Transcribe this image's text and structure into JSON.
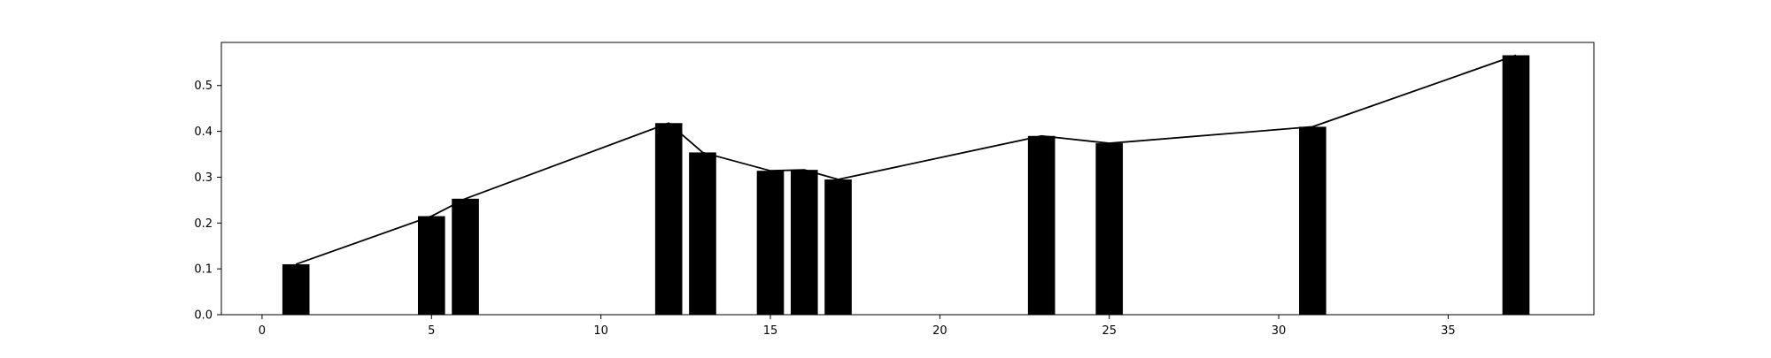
{
  "chart_data": {
    "type": "bar",
    "title": "",
    "xlabel": "",
    "ylabel": "",
    "x": [
      1,
      5,
      6,
      12,
      13,
      15,
      16,
      17,
      23,
      25,
      31,
      37
    ],
    "values": [
      0.11,
      0.215,
      0.253,
      0.418,
      0.354,
      0.314,
      0.316,
      0.295,
      0.39,
      0.374,
      0.41,
      0.566
    ],
    "line_overlay": true,
    "xlim": [
      -1.2,
      39.3
    ],
    "ylim": [
      0,
      0.594
    ],
    "xticks": [
      0,
      5,
      10,
      15,
      20,
      25,
      30,
      35
    ],
    "yticks": [
      0.0,
      0.1,
      0.2,
      0.3,
      0.4,
      0.5
    ],
    "xtick_labels": [
      "0",
      "5",
      "10",
      "15",
      "20",
      "25",
      "30",
      "35"
    ],
    "ytick_labels": [
      "0.0",
      "0.1",
      "0.2",
      "0.3",
      "0.4",
      "0.5"
    ],
    "bar_width": 0.8,
    "bar_color": "#000000",
    "line_color": "#000000",
    "grid": false,
    "legend": "none"
  }
}
